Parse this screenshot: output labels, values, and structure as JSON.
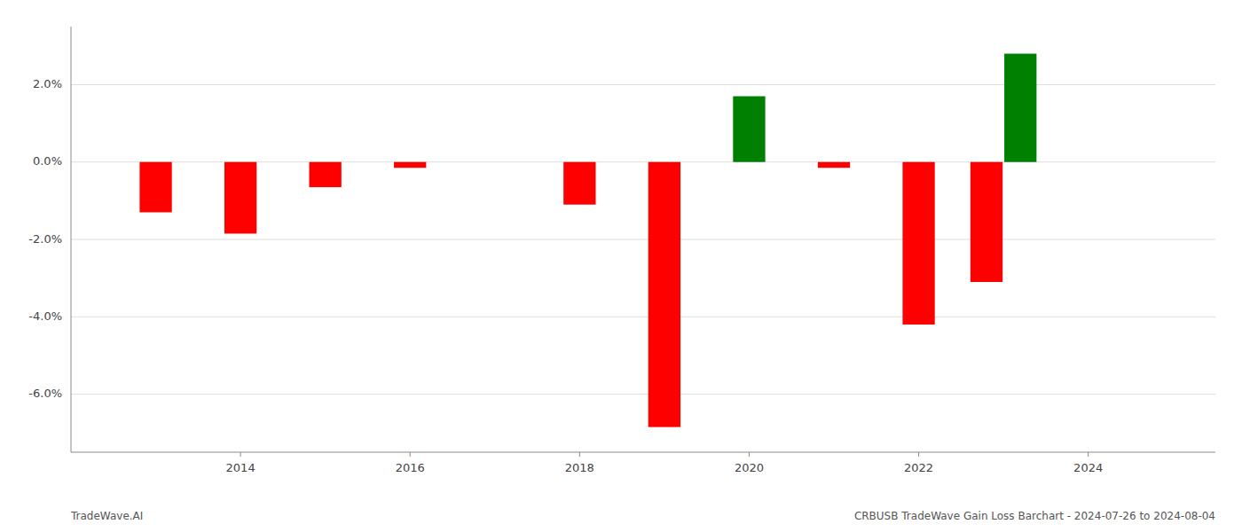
{
  "chart_data": {
    "type": "bar",
    "x": [
      2013,
      2014,
      2015,
      2016,
      2018,
      2019,
      2020,
      2021,
      2022,
      2022.8,
      2023.2
    ],
    "values": [
      -1.3,
      -1.85,
      -0.65,
      -0.15,
      -1.1,
      -6.85,
      1.7,
      -0.15,
      -4.2,
      -3.1,
      2.8
    ],
    "colors": [
      "red",
      "red",
      "red",
      "red",
      "red",
      "red",
      "green",
      "red",
      "red",
      "red",
      "green"
    ],
    "xlim": [
      2012.0,
      2025.5
    ],
    "xticks": [
      2014,
      2016,
      2018,
      2020,
      2022,
      2024
    ],
    "ylim": [
      -7.5,
      3.5
    ],
    "yticks": [
      {
        "value": 2.0,
        "label": "2.0%"
      },
      {
        "value": 0.0,
        "label": "0.0%"
      },
      {
        "value": -2.0,
        "label": "-2.0%"
      },
      {
        "value": -4.0,
        "label": "-4.0%"
      },
      {
        "value": -6.0,
        "label": "-6.0%"
      }
    ],
    "grid": true,
    "annotations": [
      "TradeWave.AI",
      "CRBUSB TradeWave Gain Loss Barchart - 2024-07-26 to 2024-08-04"
    ]
  }
}
